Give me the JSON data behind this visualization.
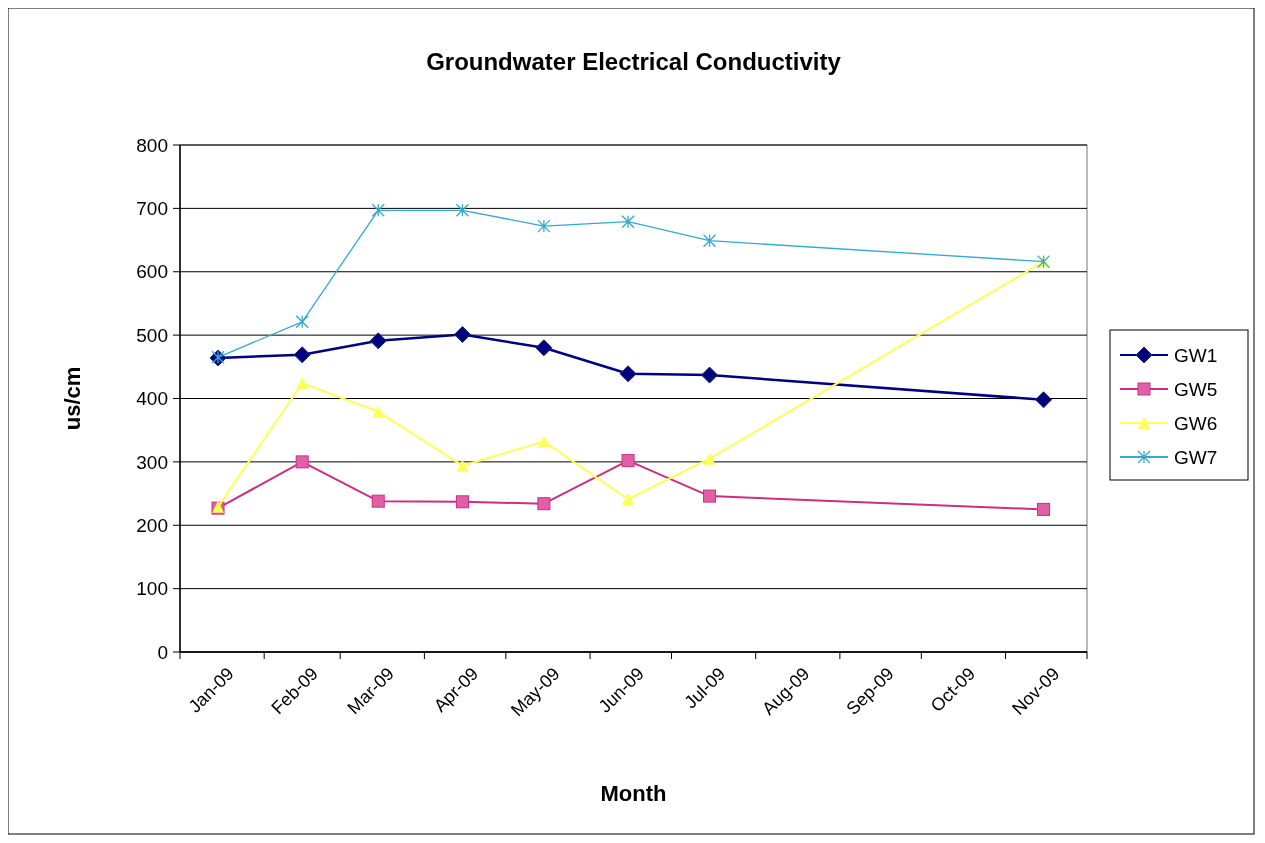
{
  "chart_data": {
    "type": "line",
    "title": "Groundwater Electrical Conductivity",
    "xlabel": "Month",
    "ylabel": "us/cm",
    "x": [
      "2009-01-15",
      "2009-02-15",
      "2009-03-15",
      "2009-04-15",
      "2009-05-15",
      "2009-06-15",
      "2009-07-15",
      "2009-11-15"
    ],
    "xlim": [
      "2009-01-01",
      "2009-12-01"
    ],
    "xticks": [
      {
        "value": "2009-01-01",
        "label": null
      },
      {
        "value": "2009-01-15",
        "label": "Jan-09"
      },
      {
        "value": "2009-02-01",
        "label": null
      },
      {
        "value": "2009-02-15",
        "label": "Feb-09"
      },
      {
        "value": "2009-03-01",
        "label": null
      },
      {
        "value": "2009-03-15",
        "label": "Mar-09"
      },
      {
        "value": "2009-04-01",
        "label": null
      },
      {
        "value": "2009-04-15",
        "label": "Apr-09"
      },
      {
        "value": "2009-05-01",
        "label": null
      },
      {
        "value": "2009-05-15",
        "label": "May-09"
      },
      {
        "value": "2009-06-01",
        "label": null
      },
      {
        "value": "2009-06-15",
        "label": "Jun-09"
      },
      {
        "value": "2009-07-01",
        "label": null
      },
      {
        "value": "2009-07-15",
        "label": "Jul-09"
      },
      {
        "value": "2009-08-01",
        "label": null
      },
      {
        "value": "2009-08-15",
        "label": "Aug-09"
      },
      {
        "value": "2009-09-01",
        "label": null
      },
      {
        "value": "2009-09-15",
        "label": "Sep-09"
      },
      {
        "value": "2009-10-01",
        "label": null
      },
      {
        "value": "2009-10-15",
        "label": "Oct-09"
      },
      {
        "value": "2009-11-01",
        "label": null
      },
      {
        "value": "2009-11-15",
        "label": "Nov-09"
      },
      {
        "value": "2009-12-01",
        "label": null
      }
    ],
    "ylim": [
      0,
      800
    ],
    "yticks": [
      0,
      100,
      200,
      300,
      400,
      500,
      600,
      700,
      800
    ],
    "grid": "y",
    "legend": "right",
    "series": [
      {
        "name": "GW1",
        "color": "#000080",
        "marker": "diamond",
        "values": [
          464,
          469,
          491,
          501,
          480,
          439,
          437,
          398
        ]
      },
      {
        "name": "GW5",
        "color": "#cc2e80",
        "marker": "square",
        "values": [
          227,
          300,
          238,
          237,
          234,
          302,
          246,
          225
        ]
      },
      {
        "name": "GW6",
        "color": "#ffff55",
        "marker": "triangle",
        "values": [
          229,
          424,
          379,
          294,
          332,
          241,
          305,
          616
        ]
      },
      {
        "name": "GW7",
        "color": "#33aacc",
        "marker": "cross",
        "values": [
          465,
          521,
          697,
          697,
          672,
          679,
          649,
          616
        ]
      }
    ]
  }
}
